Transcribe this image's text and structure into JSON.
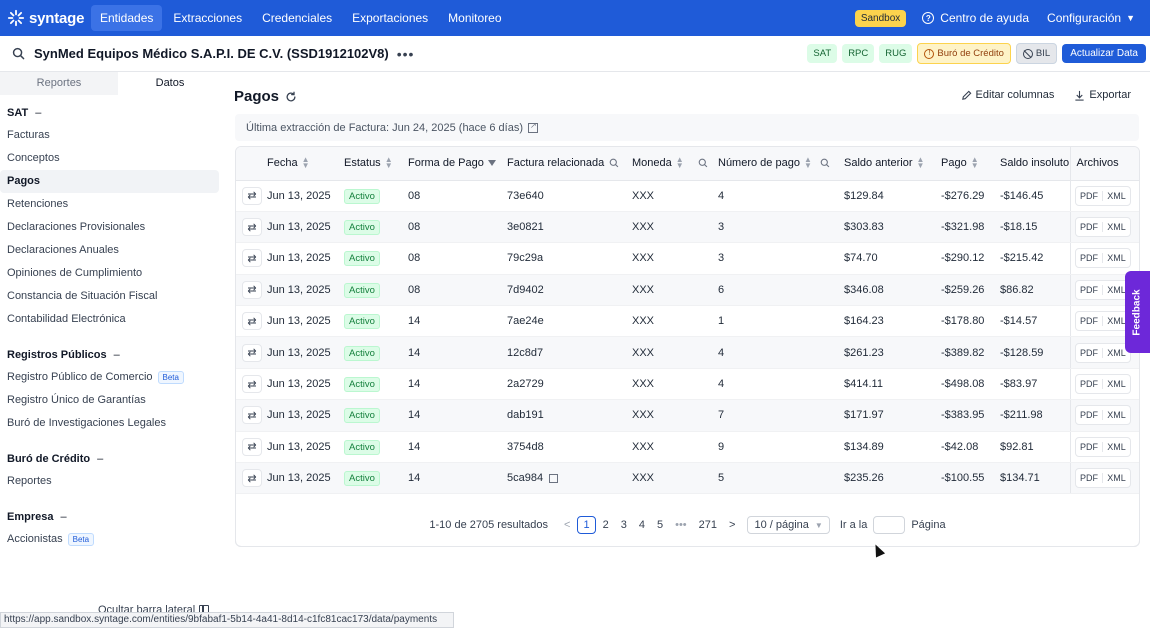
{
  "nav": {
    "brand": "syntage",
    "items": [
      "Entidades",
      "Extracciones",
      "Credenciales",
      "Exportaciones",
      "Monitoreo"
    ],
    "sandbox": "Sandbox",
    "help": "Centro de ayuda",
    "config": "Configuración",
    "accent": "#1f5bd8"
  },
  "entity": {
    "title": "SynMed Equipos Médico S.A.P.I. DE C.V. (SSD1912102V8)",
    "more": "•••",
    "badges": [
      "SAT",
      "RPC",
      "RUG"
    ],
    "buro": "Buró de Crédito",
    "bil": "BIL",
    "update": "Actualizar Data"
  },
  "sidebar": {
    "tabs": [
      "Reportes",
      "Datos"
    ],
    "sections": [
      {
        "title": "SAT",
        "items": [
          "Facturas",
          "Conceptos",
          "Pagos",
          "Retenciones",
          "Declaraciones Provisionales",
          "Declaraciones Anuales",
          "Opiniones de Cumplimiento",
          "Constancia de Situación Fiscal",
          "Contabilidad Electrónica"
        ]
      },
      {
        "title": "Registros Públicos",
        "items": [
          "Registro Público de Comercio",
          "Registro Único de Garantías",
          "Buró de Investigaciones Legales"
        ]
      },
      {
        "title": "Buró de Crédito",
        "items": [
          "Reportes"
        ]
      },
      {
        "title": "Empresa",
        "items": [
          "Accionistas"
        ]
      }
    ],
    "beta": "Beta",
    "hide": "Ocultar barra lateral"
  },
  "main": {
    "title": "Pagos",
    "edit_columns": "Editar columnas",
    "export": "Exportar",
    "last_extraction": "Última extracción de Factura: Jun 24, 2025 (hace 6 días)"
  },
  "table": {
    "columns": [
      "Fecha",
      "Estatus",
      "Forma de Pago",
      "Factura relacionada",
      "Moneda",
      "Número de pago",
      "Saldo anterior",
      "Pago",
      "Saldo insoluto",
      "Archivos"
    ],
    "files": [
      "PDF",
      "XML"
    ],
    "rows": [
      {
        "fecha": "Jun 13, 2025",
        "estatus": "Activo",
        "forma": "08",
        "factura": "73e640",
        "moneda": "XXX",
        "numero": "4",
        "saldo_ant": "$129.84",
        "pago": "-$276.29",
        "saldo_ins": "-$146.45"
      },
      {
        "fecha": "Jun 13, 2025",
        "estatus": "Activo",
        "forma": "08",
        "factura": "3e0821",
        "moneda": "XXX",
        "numero": "3",
        "saldo_ant": "$303.83",
        "pago": "-$321.98",
        "saldo_ins": "-$18.15"
      },
      {
        "fecha": "Jun 13, 2025",
        "estatus": "Activo",
        "forma": "08",
        "factura": "79c29a",
        "moneda": "XXX",
        "numero": "3",
        "saldo_ant": "$74.70",
        "pago": "-$290.12",
        "saldo_ins": "-$215.42"
      },
      {
        "fecha": "Jun 13, 2025",
        "estatus": "Activo",
        "forma": "08",
        "factura": "7d9402",
        "moneda": "XXX",
        "numero": "6",
        "saldo_ant": "$346.08",
        "pago": "-$259.26",
        "saldo_ins": "$86.82"
      },
      {
        "fecha": "Jun 13, 2025",
        "estatus": "Activo",
        "forma": "14",
        "factura": "7ae24e",
        "moneda": "XXX",
        "numero": "1",
        "saldo_ant": "$164.23",
        "pago": "-$178.80",
        "saldo_ins": "-$14.57"
      },
      {
        "fecha": "Jun 13, 2025",
        "estatus": "Activo",
        "forma": "14",
        "factura": "12c8d7",
        "moneda": "XXX",
        "numero": "4",
        "saldo_ant": "$261.23",
        "pago": "-$389.82",
        "saldo_ins": "-$128.59"
      },
      {
        "fecha": "Jun 13, 2025",
        "estatus": "Activo",
        "forma": "14",
        "factura": "2a2729",
        "moneda": "XXX",
        "numero": "4",
        "saldo_ant": "$414.11",
        "pago": "-$498.08",
        "saldo_ins": "-$83.97"
      },
      {
        "fecha": "Jun 13, 2025",
        "estatus": "Activo",
        "forma": "14",
        "factura": "dab191",
        "moneda": "XXX",
        "numero": "7",
        "saldo_ant": "$171.97",
        "pago": "-$383.95",
        "saldo_ins": "-$211.98"
      },
      {
        "fecha": "Jun 13, 2025",
        "estatus": "Activo",
        "forma": "14",
        "factura": "3754d8",
        "moneda": "XXX",
        "numero": "9",
        "saldo_ant": "$134.89",
        "pago": "-$42.08",
        "saldo_ins": "$92.81"
      },
      {
        "fecha": "Jun 13, 2025",
        "estatus": "Activo",
        "forma": "14",
        "factura": "5ca984",
        "moneda": "XXX",
        "numero": "5",
        "saldo_ant": "$235.26",
        "pago": "-$100.55",
        "saldo_ins": "$134.71"
      }
    ]
  },
  "pagination": {
    "summary": "1-10 de 2705 resultados",
    "prev": "<",
    "pages": [
      "1",
      "2",
      "3",
      "4",
      "5"
    ],
    "ellipsis": "•••",
    "last": "271",
    "next": ">",
    "size": "10 / página",
    "goto_label": "Ir a la",
    "goto_suffix": "Página"
  },
  "feedback": "Feedback",
  "statusbar": "https://app.sandbox.syntage.com/entities/9bfabaf1-5b14-4a41-8d14-c1fc81cac173/data/payments"
}
